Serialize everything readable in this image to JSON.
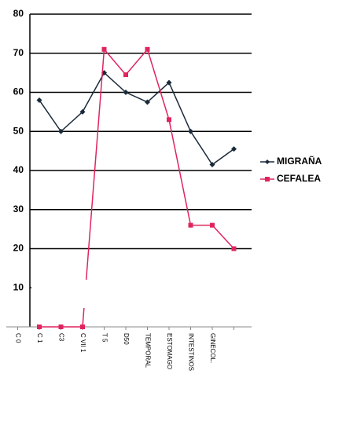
{
  "chart_data": {
    "type": "line",
    "categories": [
      "C 0",
      "C 1",
      "C3",
      "C VII 1",
      "T 5",
      "D50",
      "TEMPORAL",
      "ESTOMAGO",
      "INTESTINOS",
      "GINECOL.",
      null
    ],
    "series": [
      {
        "name": "MIGRAÑA",
        "color": "#1a2a3a",
        "values": [
          null,
          58,
          50,
          55,
          65,
          60,
          57.5,
          62.5,
          50,
          41.5,
          45.5
        ]
      },
      {
        "name": "CEFALEA",
        "color": "#e0245e",
        "values": [
          null,
          0,
          0,
          0,
          71,
          64.5,
          71,
          53,
          26,
          26,
          20
        ]
      }
    ],
    "ylim": [
      0,
      80
    ],
    "yticks": [
      0,
      10,
      20,
      30,
      40,
      50,
      60,
      70,
      80
    ],
    "grid": true,
    "legend": "right"
  }
}
